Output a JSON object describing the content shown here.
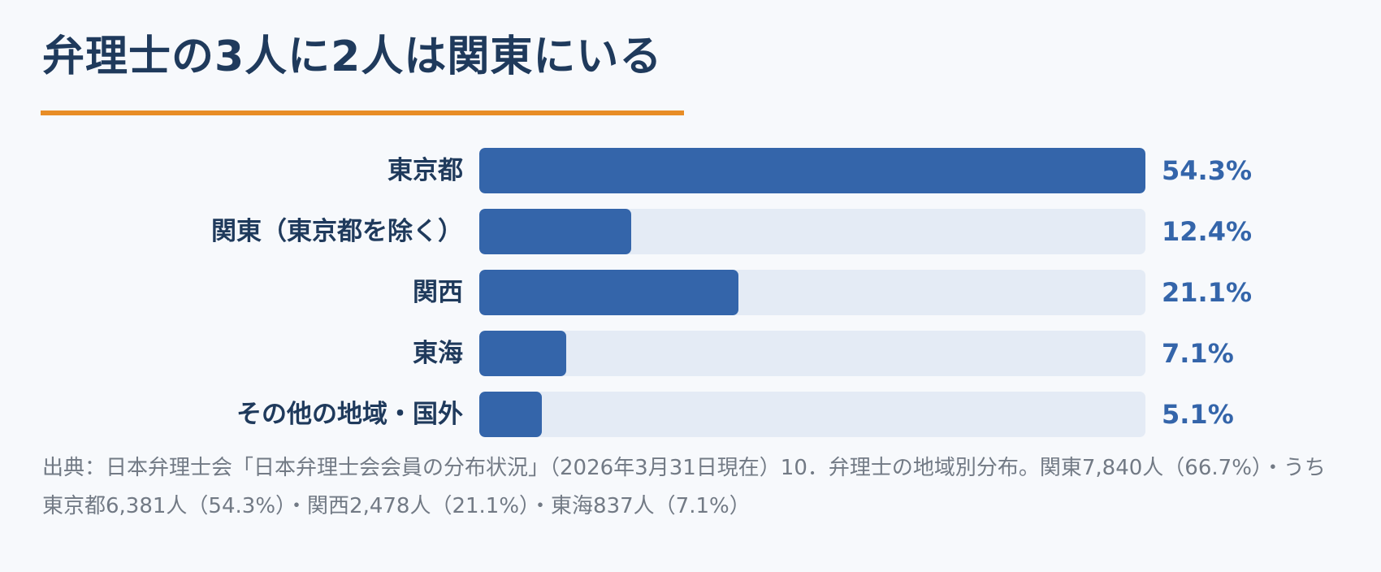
{
  "title": "弁理士の3人に2人は関東にいる",
  "colors": {
    "title": "#1f3a5c",
    "underline": "#e88d26",
    "bar": "#3465aa",
    "track": "#e4ebf5",
    "value": "#3465aa",
    "source": "#727a85",
    "background": "#f7f9fc"
  },
  "chart_data": {
    "type": "bar",
    "orientation": "horizontal",
    "unit": "%",
    "xlim": [
      0,
      54.3
    ],
    "categories": [
      "東京都",
      "関東（東京都を除く）",
      "関西",
      "東海",
      "その他の地域・国外"
    ],
    "values": [
      54.3,
      12.4,
      21.1,
      7.1,
      5.1
    ],
    "value_labels": [
      "54.3%",
      "12.4%",
      "21.1%",
      "7.1%",
      "5.1%"
    ],
    "grid": false,
    "legend": "none"
  },
  "source": "出典：日本弁理士会「日本弁理士会会員の分布状況」（2026年3月31日現在）10．弁理士の地域別分布。関東7,840人（66.7%）・うち東京都6,381人（54.3%）・関西2,478人（21.1%）・東海837人（7.1%）"
}
